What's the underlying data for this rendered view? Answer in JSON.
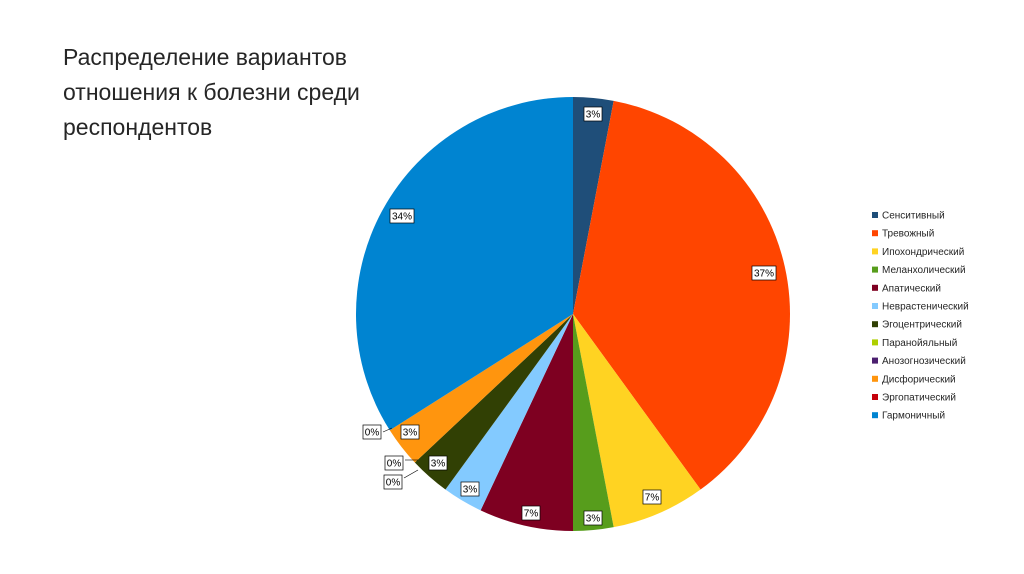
{
  "slide": {
    "title": "Распределение вариантов отношения к болезни среди респондентов"
  },
  "chart_data": {
    "type": "pie",
    "title": "Распределение вариантов отношения к болезни среди респондентов",
    "legend_position": "right",
    "start_angle": "12 o'clock, clockwise",
    "slices": [
      {
        "name": "Сенситивный",
        "value": 3,
        "label": "3%",
        "color": "#1F4E79"
      },
      {
        "name": "Тревожный",
        "value": 37,
        "label": "37%",
        "color": "#FF4500"
      },
      {
        "name": "Ипохондрический",
        "value": 7,
        "label": "7%",
        "color": "#FFD322"
      },
      {
        "name": "Меланхолический",
        "value": 3,
        "label": "3%",
        "color": "#579D1C"
      },
      {
        "name": "Апатический",
        "value": 7,
        "label": "7%",
        "color": "#7E0021"
      },
      {
        "name": "Неврастенический",
        "value": 3,
        "label": "3%",
        "color": "#83CAFF"
      },
      {
        "name": "Эгоцентрический",
        "value": 3,
        "label": "3%",
        "color": "#314004"
      },
      {
        "name": "Паранойяльный",
        "value": 0,
        "label": "0%",
        "color": "#AECF00"
      },
      {
        "name": "Анозогнозический",
        "value": 0,
        "label": "0%",
        "color": "#4B1F6F"
      },
      {
        "name": "Дисфорический",
        "value": 3,
        "label": "3%",
        "color": "#FF950E"
      },
      {
        "name": "Эргопатический",
        "value": 0,
        "label": "0%",
        "color": "#C5000B"
      },
      {
        "name": "Гармоничный",
        "value": 34,
        "label": "34%",
        "color": "#0084D1"
      }
    ]
  }
}
